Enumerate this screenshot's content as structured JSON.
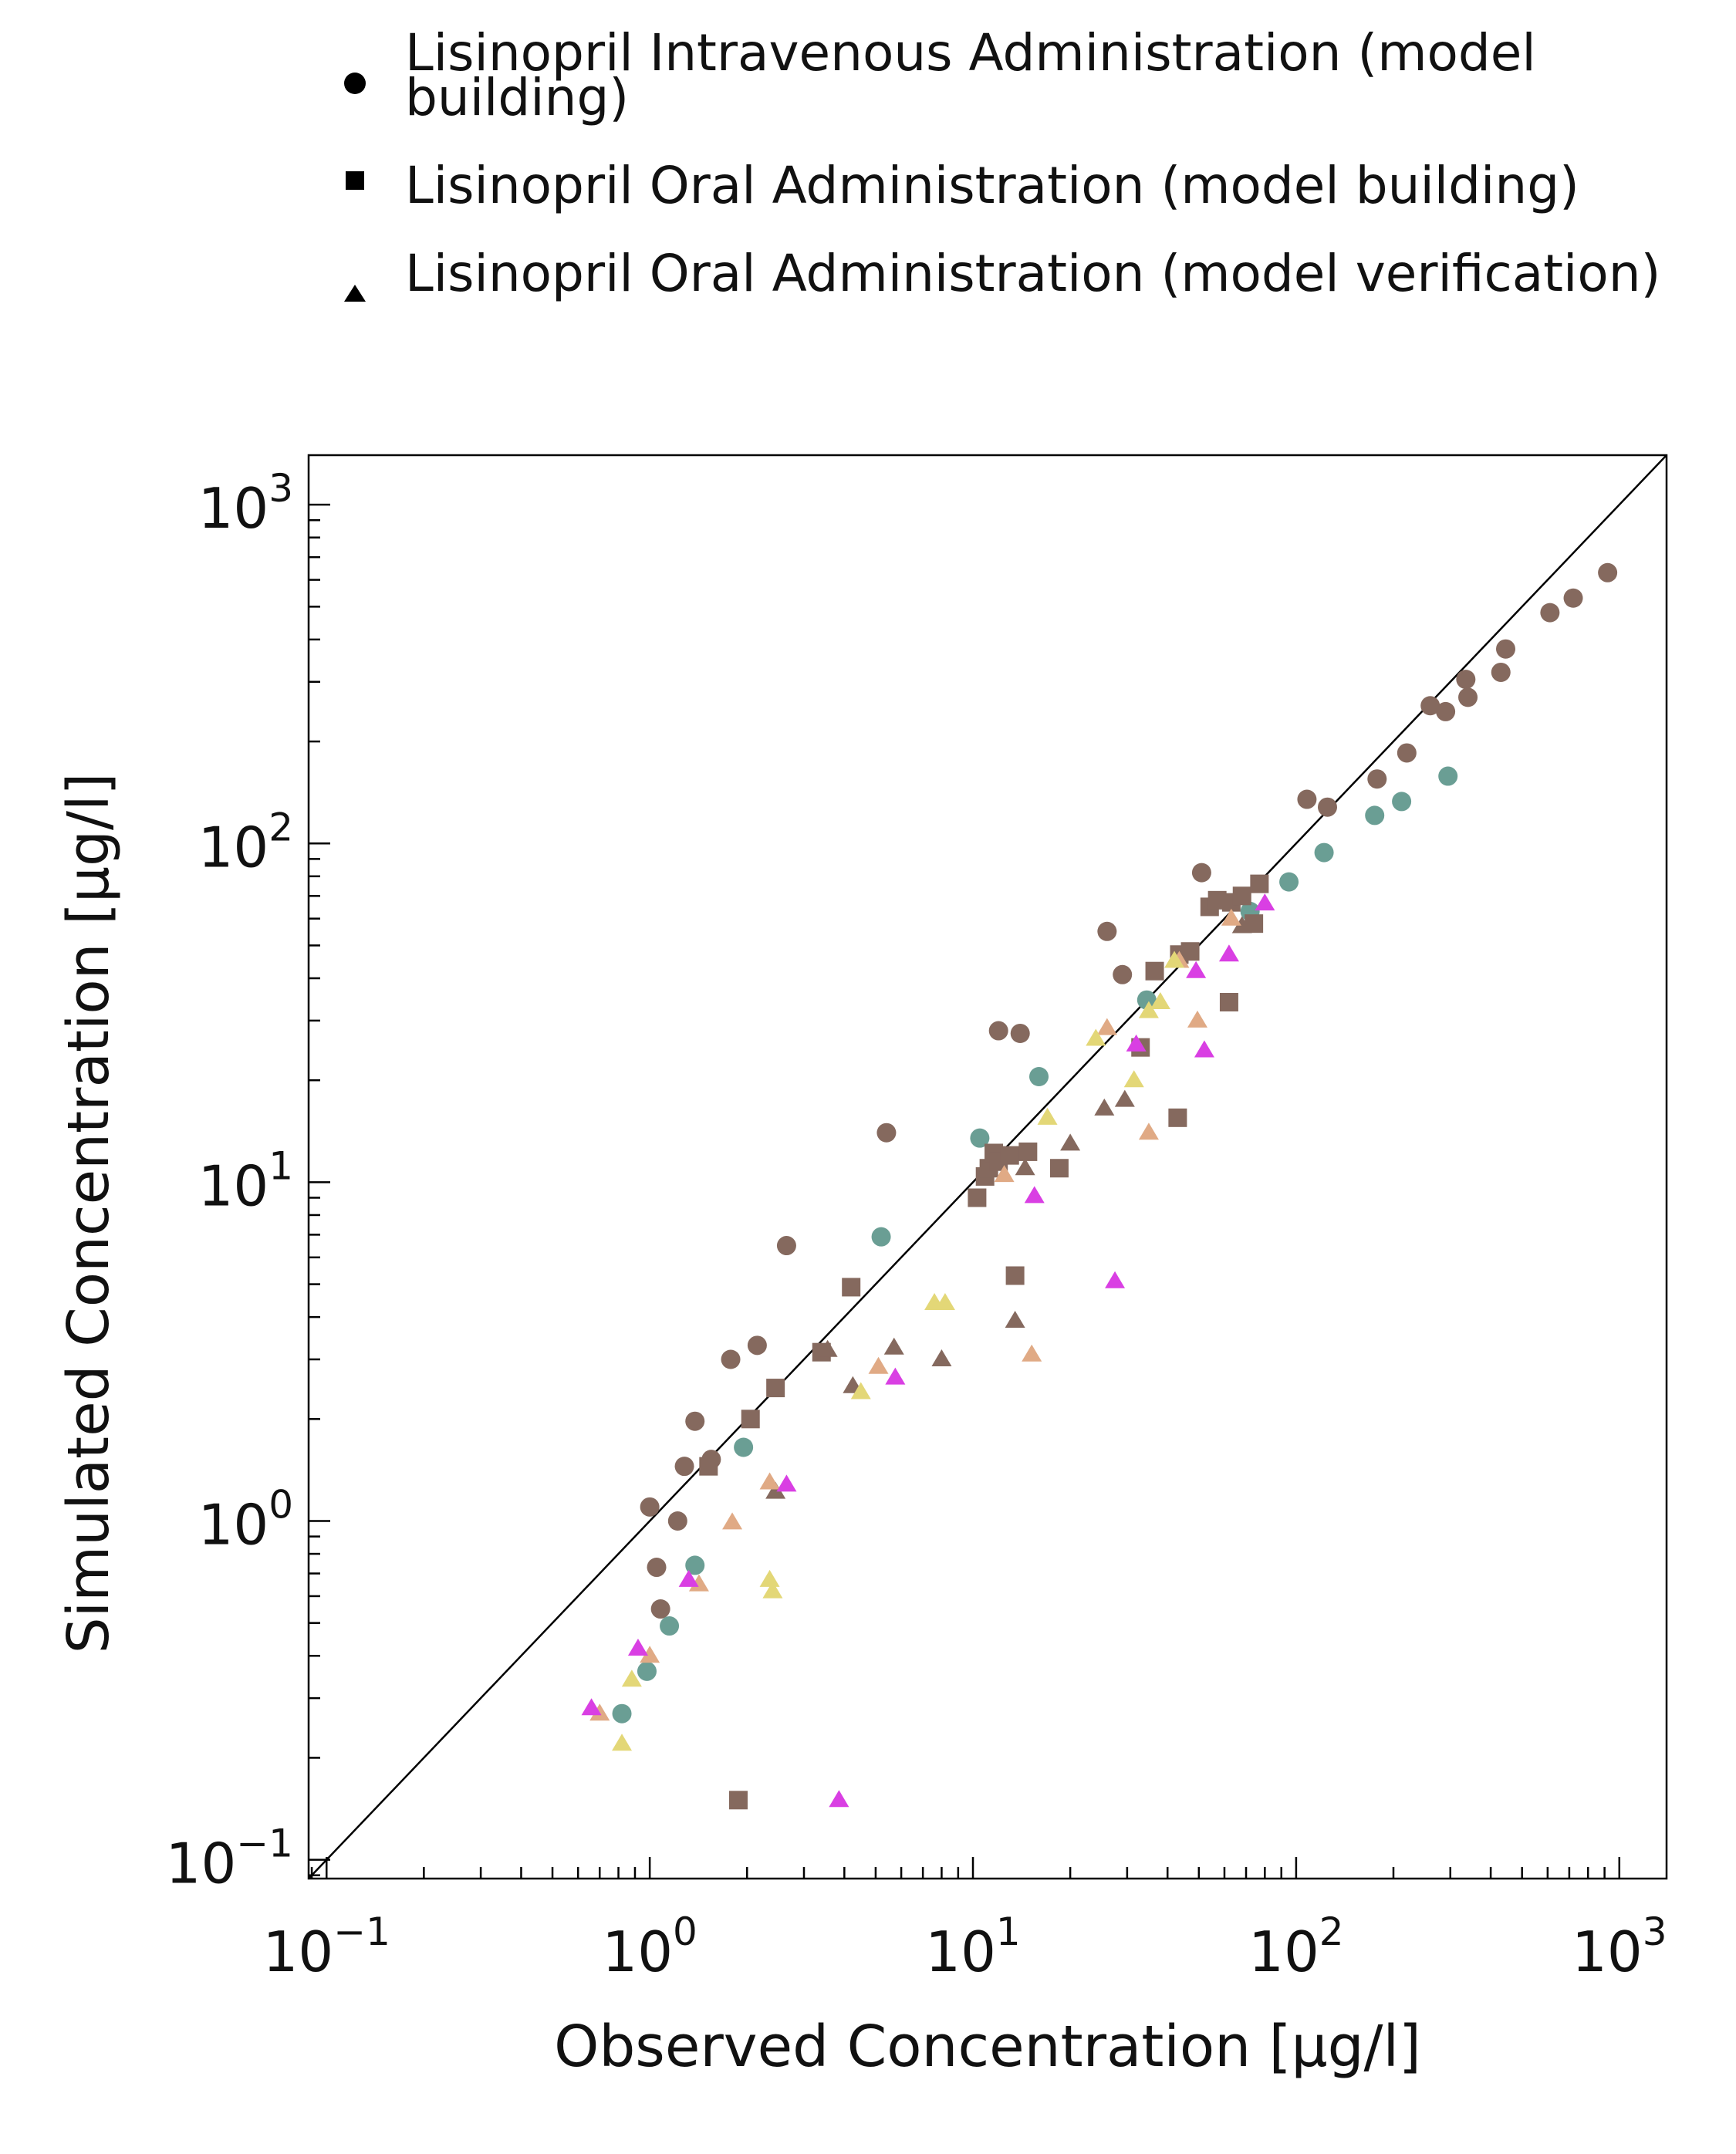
{
  "chart_data": {
    "type": "scatter",
    "xlabel": "Observed Concentration [µg/l]",
    "ylabel": "Simulated Concentration [µg/l]",
    "xscale": "log",
    "yscale": "log",
    "xlim": [
      0.088,
      1400
    ],
    "ylim": [
      0.088,
      1400
    ],
    "x_ticks": [
      {
        "value": 0.1,
        "base": "10",
        "exp": "−1"
      },
      {
        "value": 1,
        "base": "10",
        "exp": "0"
      },
      {
        "value": 10,
        "base": "10",
        "exp": "1"
      },
      {
        "value": 100,
        "base": "10",
        "exp": "2"
      },
      {
        "value": 1000,
        "base": "10",
        "exp": "3"
      }
    ],
    "y_ticks": [
      {
        "value": 0.1,
        "base": "10",
        "exp": "−1"
      },
      {
        "value": 1,
        "base": "10",
        "exp": "0"
      },
      {
        "value": 10,
        "base": "10",
        "exp": "1"
      },
      {
        "value": 100,
        "base": "10",
        "exp": "2"
      },
      {
        "value": 1000,
        "base": "10",
        "exp": "3"
      }
    ],
    "identity_line": true,
    "grid": false,
    "legend_position": "top",
    "legend": [
      {
        "label": "Lisinopril Intravenous Administration (model building)",
        "marker": "circle"
      },
      {
        "label": "Lisinopril Oral Administration (model building)",
        "marker": "square"
      },
      {
        "label": "Lisinopril Oral Administration (model verification)",
        "marker": "triangle"
      }
    ],
    "colors": {
      "brown": "#85695e",
      "teal": "#6a9e94",
      "tan": "#e0aa85",
      "yellow": "#e3d777",
      "magenta": "#d93fe3",
      "axis": "#000000",
      "legend_marker": "#000000"
    },
    "series": [
      {
        "marker": "circle",
        "color": "brown",
        "points": [
          [
            1.0,
            1.1
          ],
          [
            1.05,
            0.73
          ],
          [
            1.08,
            0.55
          ],
          [
            1.22,
            1.0
          ],
          [
            1.28,
            1.45
          ],
          [
            1.38,
            1.97
          ],
          [
            1.55,
            1.52
          ],
          [
            1.78,
            3.0
          ],
          [
            2.15,
            3.3
          ],
          [
            2.65,
            6.5
          ],
          [
            5.4,
            14.0
          ],
          [
            12.0,
            28.0
          ],
          [
            14.0,
            27.5
          ],
          [
            26.0,
            55.0
          ],
          [
            29.0,
            41.0
          ],
          [
            51.0,
            82.0
          ],
          [
            108.0,
            135.0
          ],
          [
            125.0,
            128.0
          ],
          [
            178.0,
            155.0
          ],
          [
            220.0,
            185.0
          ],
          [
            260.0,
            255.0
          ],
          [
            290.0,
            245.0
          ],
          [
            335.0,
            305.0
          ],
          [
            340.0,
            270.0
          ],
          [
            430.0,
            320.0
          ],
          [
            445.0,
            375.0
          ],
          [
            610.0,
            480.0
          ],
          [
            720.0,
            530.0
          ],
          [
            920.0,
            630.0
          ]
        ]
      },
      {
        "marker": "circle",
        "color": "teal",
        "points": [
          [
            0.82,
            0.27
          ],
          [
            0.98,
            0.36
          ],
          [
            1.15,
            0.49
          ],
          [
            1.38,
            0.74
          ],
          [
            1.95,
            1.65
          ],
          [
            5.2,
            6.9
          ],
          [
            10.5,
            13.5
          ],
          [
            16.0,
            20.5
          ],
          [
            34.5,
            34.5
          ],
          [
            72.0,
            63.0
          ],
          [
            95.0,
            77.0
          ],
          [
            122.0,
            94.0
          ],
          [
            175.0,
            121.0
          ],
          [
            212.0,
            133.0
          ],
          [
            295.0,
            158.0
          ]
        ]
      },
      {
        "marker": "square",
        "color": "brown",
        "points": [
          [
            1.88,
            0.15
          ],
          [
            1.52,
            1.45
          ],
          [
            2.05,
            2.0
          ],
          [
            2.45,
            2.47
          ],
          [
            3.4,
            3.15
          ],
          [
            4.2,
            4.9
          ],
          [
            10.3,
            9.0
          ],
          [
            10.9,
            10.4
          ],
          [
            11.2,
            11.0
          ],
          [
            11.6,
            12.2
          ],
          [
            12.0,
            11.5
          ],
          [
            13.0,
            12.0
          ],
          [
            13.5,
            5.3
          ],
          [
            14.8,
            12.3
          ],
          [
            18.5,
            11.0
          ],
          [
            33.0,
            25.0
          ],
          [
            36.5,
            42.0
          ],
          [
            43.0,
            15.5
          ],
          [
            43.5,
            47.0
          ],
          [
            47.0,
            48.0
          ],
          [
            54.0,
            65.0
          ],
          [
            57.0,
            68.0
          ],
          [
            62.0,
            34.0
          ],
          [
            63.0,
            67.0
          ],
          [
            68.0,
            70.0
          ],
          [
            74.0,
            58.0
          ],
          [
            77.0,
            76.0
          ]
        ]
      },
      {
        "marker": "triangle",
        "color": "brown",
        "points": [
          [
            2.45,
            1.22
          ],
          [
            3.55,
            3.2
          ],
          [
            4.25,
            2.5
          ],
          [
            5.7,
            3.25
          ],
          [
            8.0,
            3.0
          ],
          [
            13.5,
            3.9
          ],
          [
            14.5,
            11.0
          ],
          [
            20.0,
            13.0
          ],
          [
            25.5,
            16.5
          ],
          [
            29.5,
            17.5
          ],
          [
            68.0,
            57.0
          ]
        ]
      },
      {
        "marker": "triangle",
        "color": "tan",
        "points": [
          [
            0.7,
            0.27
          ],
          [
            1.0,
            0.4
          ],
          [
            1.42,
            0.65
          ],
          [
            1.8,
            0.99
          ],
          [
            2.35,
            1.3
          ],
          [
            5.1,
            2.85
          ],
          [
            12.5,
            10.5
          ],
          [
            15.2,
            3.1
          ],
          [
            26.0,
            28.5
          ],
          [
            35.0,
            14.0
          ],
          [
            43.5,
            45.0
          ],
          [
            49.5,
            30.0
          ],
          [
            63.0,
            60.0
          ]
        ]
      },
      {
        "marker": "triangle",
        "color": "yellow",
        "points": [
          [
            0.82,
            0.22
          ],
          [
            0.88,
            0.34
          ],
          [
            2.35,
            0.67
          ],
          [
            2.4,
            0.62
          ],
          [
            4.5,
            2.4
          ],
          [
            7.6,
            4.4
          ],
          [
            8.2,
            4.4
          ],
          [
            17.0,
            15.5
          ],
          [
            24.0,
            26.5
          ],
          [
            31.5,
            20.0
          ],
          [
            35.0,
            32.0
          ],
          [
            38.0,
            34.0
          ],
          [
            42.0,
            45.0
          ]
        ]
      },
      {
        "marker": "triangle",
        "color": "magenta",
        "points": [
          [
            0.66,
            0.28
          ],
          [
            0.92,
            0.42
          ],
          [
            1.32,
            0.67
          ],
          [
            2.65,
            1.28
          ],
          [
            3.85,
            0.15
          ],
          [
            5.75,
            2.65
          ],
          [
            15.5,
            9.1
          ],
          [
            27.5,
            5.1
          ],
          [
            32.0,
            25.5
          ],
          [
            49.0,
            42.0
          ],
          [
            52.0,
            24.5
          ],
          [
            62.0,
            47.0
          ],
          [
            80.0,
            66.5
          ]
        ]
      }
    ]
  }
}
